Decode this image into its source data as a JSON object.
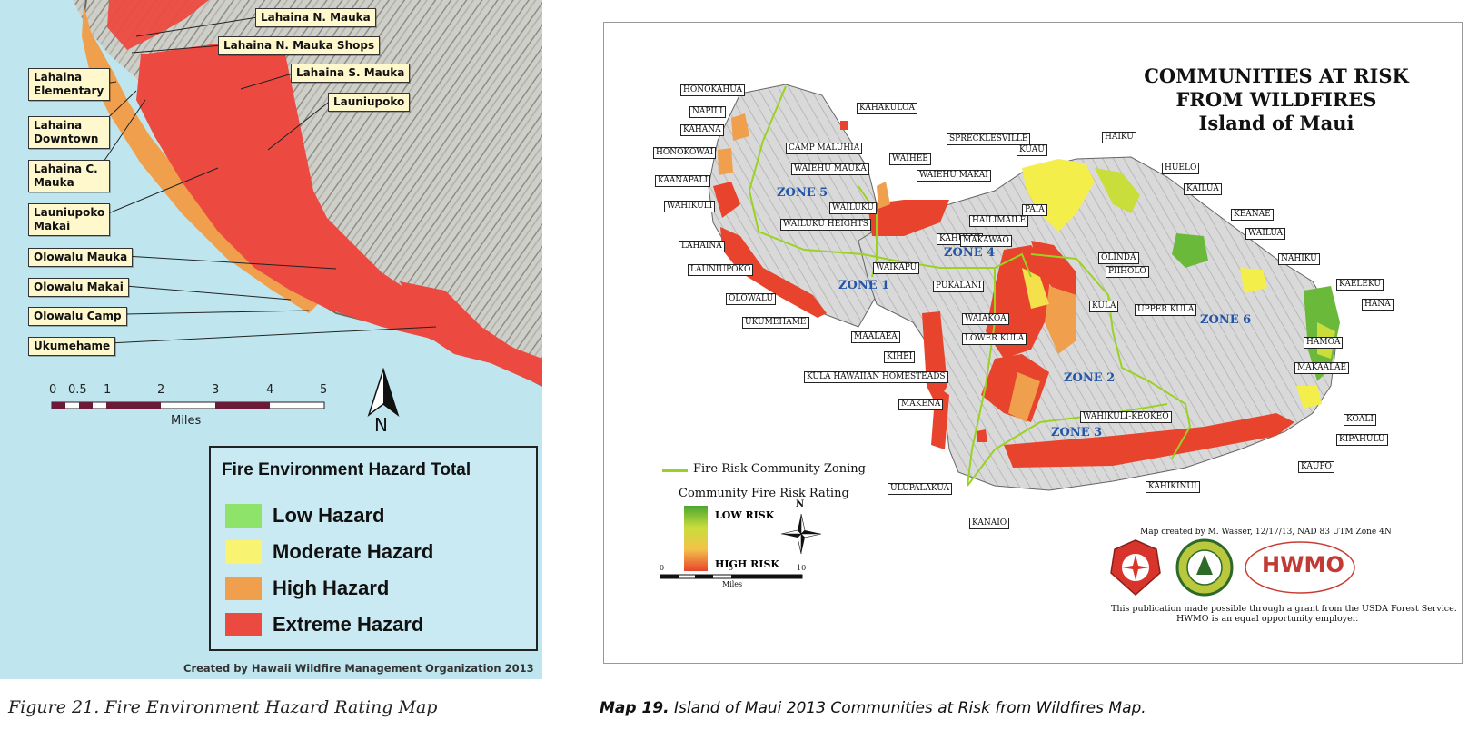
{
  "left_figure": {
    "callouts": {
      "lahaina_n_mauka": "Lahaina N. Mauka",
      "lahaina_n_mauka_shops": "Lahaina N. Mauka Shops",
      "lahaina_s_mauka": "Lahaina S. Mauka",
      "launiupoko": "Launiupoko",
      "lahaina_elementary": "Lahaina Elementary",
      "lahaina_downtown": "Lahaina Downtown",
      "lahaina_c_mauka": "Lahaina C. Mauka",
      "launiupoko_makai": "Launiupoko Makai",
      "olowalu_mauka": "Olowalu Mauka",
      "olowalu_makai": "Olowalu Makai",
      "olowalu_camp": "Olowalu Camp",
      "ukumehame": "Ukumehame"
    },
    "scale": {
      "ticks": [
        "0",
        "0.5",
        "1",
        "2",
        "3",
        "4",
        "5"
      ],
      "unit": "Miles"
    },
    "north_label": "N",
    "legend": {
      "title": "Fire Environment Hazard Total",
      "items": [
        {
          "label": "Low Hazard",
          "color": "#8ee46a"
        },
        {
          "label": "Moderate Hazard",
          "color": "#f8f472"
        },
        {
          "label": "High Hazard",
          "color": "#f0a04c"
        },
        {
          "label": "Extreme Hazard",
          "color": "#ec4a40"
        }
      ]
    },
    "credit": "Created by Hawaii Wildfire Management Organization   2013",
    "caption": "Figure 21.  Fire Environment Hazard Rating Map"
  },
  "right_figure": {
    "title_lines": [
      "COMMUNITIES AT RISK",
      "FROM WILDFIRES",
      "Island of Maui"
    ],
    "communities": {
      "honokahua": "HONOKAHUA",
      "napili": "NAPILI",
      "kahana": "KAHANA",
      "honokowai": "HONOKOWAI",
      "kaanapali": "KAANAPALI",
      "wahikuli": "WAHIKULI",
      "lahaina": "LAHAINA",
      "launiupoko": "LAUNIUPOKO",
      "olowalu": "OLOWALU",
      "ukumehame": "UKUMEHAME",
      "kahakuloa": "KAHAKULOA",
      "camp_maluhia": "CAMP MALUHIA",
      "waiehu_mauka": "WAIEHU MAUKA",
      "waihee": "WAIHEE",
      "waiehu_makai": "WAIEHU MAKAI",
      "wailuku": "WAILUKU",
      "wailuku_heights": "WAILUKU HEIGHTS",
      "kahului": "KAHULUI",
      "waikapu": "WAIKAPU",
      "maalaea": "MAALAEA",
      "kihei": "KIHEI",
      "kula_hawaiian_homesteads": "KULA HAWAIIAN HOMESTEADS",
      "makena": "MAKENA",
      "ulupalakua": "ULUPALAKUA",
      "kanaio": "KANAIO",
      "spreckelsville": "SPRECKLESVILLE",
      "kuau": "KUAU",
      "paia": "PAIA",
      "hailimaile": "HAILIMAILE",
      "makawao": "MAKAWAO",
      "pukalani": "PUKALANI",
      "olinda": "OLINDA",
      "piiholo": "PIIHOLO",
      "kula": "KULA",
      "upper_kula": "UPPER KULA",
      "waiakoa": "WAIAKOA",
      "lower_kula": "LOWER KULA",
      "wahikuli_keokeo": "WAHIKULI-KEOKEO",
      "kahikinui": "KAHIKINUI",
      "haiku": "HAIKU",
      "huelo": "HUELO",
      "kailua": "KAILUA",
      "keanae": "KEANAE",
      "wailua": "WAILUA",
      "nahiku": "NAHIKU",
      "kaeleku": "KAELEKU",
      "hana": "HANA",
      "hamoa": "HAMOA",
      "makaalae": "MAKAALAE",
      "koali": "KOALI",
      "kipahulu": "KIPAHULU",
      "kaupo": "KAUPO"
    },
    "zones": {
      "zone1": "ZONE 1",
      "zone2": "ZONE 2",
      "zone3": "ZONE 3",
      "zone4": "ZONE 4",
      "zone5": "ZONE 5",
      "zone6": "ZONE 6"
    },
    "legend": {
      "zoning": "Fire Risk Community Zoning",
      "rating_title": "Community Fire Risk Rating",
      "low": "LOW RISK",
      "high": "HIGH RISK",
      "zoning_color": "#9ad223",
      "low_color": "#4aa632",
      "high_color": "#e8442d"
    },
    "scale": {
      "ticks": [
        "0",
        "5",
        "10"
      ],
      "unit": "Miles"
    },
    "north_label": "N",
    "credit": "Map created by M. Wasser, 12/17/13, NAD 83 UTM Zone 4N",
    "logo_hwmo": "HWMO",
    "grant_line_1": "This publication made possible through a grant from the USDA Forest Service.",
    "grant_line_2": "HWMO is an equal opportunity employer."
  },
  "right_caption": {
    "label": "Map 19.",
    "text": "Island of Maui 2013 Communities at Risk from Wildfires Map."
  }
}
